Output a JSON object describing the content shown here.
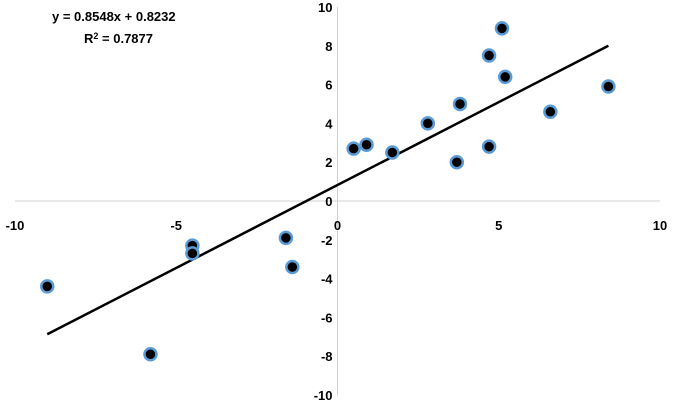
{
  "chart_data": {
    "type": "scatter",
    "title": "",
    "xlabel": "",
    "ylabel": "",
    "xlim": [
      -10,
      10
    ],
    "ylim": [
      -10,
      10
    ],
    "x_ticks": [
      -10,
      -5,
      0,
      5,
      10
    ],
    "y_ticks": [
      -10,
      -8,
      -6,
      -4,
      -2,
      0,
      2,
      4,
      6,
      8,
      10
    ],
    "grid": false,
    "legend": "none",
    "points": [
      {
        "x": -9.0,
        "y": -4.4
      },
      {
        "x": -5.8,
        "y": -7.9
      },
      {
        "x": -4.5,
        "y": -2.3
      },
      {
        "x": -4.5,
        "y": -2.7
      },
      {
        "x": -1.6,
        "y": -1.9
      },
      {
        "x": -1.4,
        "y": -3.4
      },
      {
        "x": 0.5,
        "y": 2.7
      },
      {
        "x": 0.9,
        "y": 2.9
      },
      {
        "x": 1.7,
        "y": 2.5
      },
      {
        "x": 2.8,
        "y": 4.0
      },
      {
        "x": 3.7,
        "y": 2.0
      },
      {
        "x": 3.8,
        "y": 5.0
      },
      {
        "x": 4.7,
        "y": 2.8
      },
      {
        "x": 4.7,
        "y": 7.5
      },
      {
        "x": 5.1,
        "y": 8.9
      },
      {
        "x": 5.2,
        "y": 6.4
      },
      {
        "x": 6.6,
        "y": 4.6
      },
      {
        "x": 8.4,
        "y": 5.9
      }
    ],
    "trendline": {
      "slope": 0.8548,
      "intercept": 0.8232,
      "x_range": [
        -9.0,
        8.4
      ],
      "equation": "y = 0.8548x + 0.8232",
      "r2_label": "R",
      "r2_exponent": "2",
      "r2_value": " = 0.7877"
    },
    "colors": {
      "marker_fill": "#000000",
      "marker_edge": "#5b9bd5",
      "trendline": "#000000",
      "axis": "#d0d0d0"
    }
  }
}
